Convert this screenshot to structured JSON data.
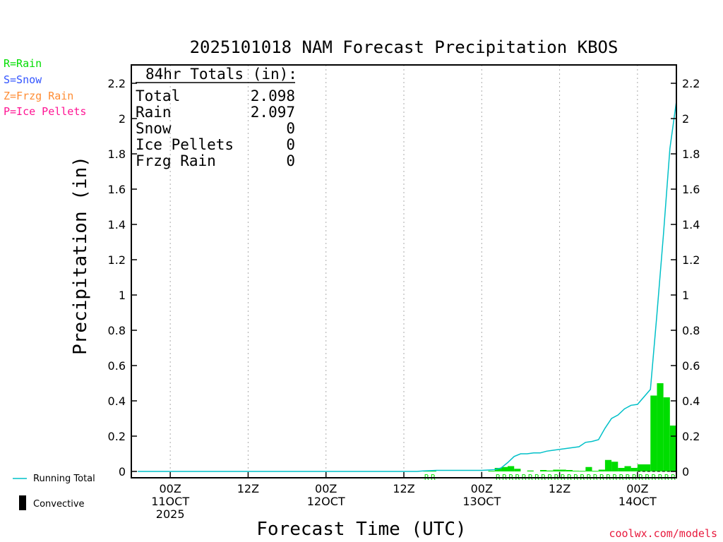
{
  "chart_data": {
    "type": "bar",
    "title": "2025101018 NAM Forecast Precipitation KBOS",
    "xlabel": "Forecast Time (UTC)",
    "ylabel": "Precipitation (in)",
    "ylim": [
      0,
      2.3
    ],
    "xlim_hours": [
      -6,
      78
    ],
    "yticks": [
      0,
      0.2,
      0.4,
      0.6,
      0.8,
      1,
      1.2,
      1.4,
      1.6,
      1.8,
      2,
      2.2
    ],
    "ytick_labels": [
      "0",
      "0.2",
      "0.4",
      "0.6",
      "0.8",
      "1",
      "1.2",
      "1.4",
      "1.6",
      "1.8",
      "2",
      "2.2"
    ],
    "xticks": [
      {
        "hour": 0,
        "lines": [
          "00Z",
          "11OCT",
          "2025"
        ]
      },
      {
        "hour": 12,
        "lines": [
          "12Z"
        ]
      },
      {
        "hour": 24,
        "lines": [
          "00Z",
          "12OCT"
        ]
      },
      {
        "hour": 36,
        "lines": [
          "12Z"
        ]
      },
      {
        "hour": 48,
        "lines": [
          "00Z",
          "13OCT"
        ]
      },
      {
        "hour": 60,
        "lines": [
          "12Z"
        ]
      },
      {
        "hour": 72,
        "lines": [
          "00Z",
          "14OCT"
        ]
      }
    ],
    "grid": "vertical-dotted",
    "legend": {
      "rain": "R=Rain",
      "snow": "S=Snow",
      "frzg_rain": "Z=Frzg Rain",
      "ice_pellets": "P=Ice Pellets",
      "running_total": "Running Total",
      "convective": "Convective"
    },
    "totals": {
      "header": "84hr Totals (in):",
      "rows": [
        {
          "label": "Total",
          "value": "2.098"
        },
        {
          "label": "Rain",
          "value": "2.097"
        },
        {
          "label": "Snow",
          "value": "0"
        },
        {
          "label": "Ice Pellets",
          "value": "0"
        },
        {
          "label": "Frzg Rain",
          "value": "0"
        }
      ]
    },
    "bars": [
      {
        "start": 39,
        "end": 40,
        "value": 0.003
      },
      {
        "start": 40,
        "end": 41,
        "value": 0.003
      },
      {
        "start": 49,
        "end": 50,
        "value": 0.003
      },
      {
        "start": 50,
        "end": 51,
        "value": 0.02
      },
      {
        "start": 51,
        "end": 52,
        "value": 0.025
      },
      {
        "start": 52,
        "end": 53,
        "value": 0.03
      },
      {
        "start": 53,
        "end": 54,
        "value": 0.015
      },
      {
        "start": 55,
        "end": 56,
        "value": 0.005
      },
      {
        "start": 57,
        "end": 58,
        "value": 0.008
      },
      {
        "start": 58,
        "end": 59,
        "value": 0.005
      },
      {
        "start": 59,
        "end": 60,
        "value": 0.01
      },
      {
        "start": 60,
        "end": 61,
        "value": 0.01
      },
      {
        "start": 61,
        "end": 62,
        "value": 0.008
      },
      {
        "start": 62,
        "end": 63,
        "value": 0.004
      },
      {
        "start": 63,
        "end": 64,
        "value": 0.003
      },
      {
        "start": 64,
        "end": 65,
        "value": 0.025
      },
      {
        "start": 65,
        "end": 66,
        "value": 0.003
      },
      {
        "start": 66,
        "end": 67,
        "value": 0.01
      },
      {
        "start": 67,
        "end": 68,
        "value": 0.065
      },
      {
        "start": 68,
        "end": 69,
        "value": 0.055
      },
      {
        "start": 69,
        "end": 70,
        "value": 0.02
      },
      {
        "start": 70,
        "end": 71,
        "value": 0.03
      },
      {
        "start": 71,
        "end": 72,
        "value": 0.02
      },
      {
        "start": 72,
        "end": 74,
        "value": 0.04
      },
      {
        "start": 74,
        "end": 75,
        "value": 0.43
      },
      {
        "start": 75,
        "end": 76,
        "value": 0.5
      },
      {
        "start": 76,
        "end": 77,
        "value": 0.42
      },
      {
        "start": 77,
        "end": 78,
        "value": 0.26
      }
    ],
    "running_total": {
      "x": [
        -5,
        38,
        39,
        41,
        48,
        50,
        51,
        52,
        53,
        54,
        55,
        56,
        57,
        58,
        59,
        60,
        61,
        62,
        63,
        64,
        65,
        66,
        67,
        68,
        69,
        70,
        71,
        72,
        74,
        75,
        76,
        77,
        78
      ],
      "y": [
        0,
        0,
        0.003,
        0.006,
        0.006,
        0.01,
        0.02,
        0.05,
        0.085,
        0.1,
        0.1,
        0.105,
        0.105,
        0.115,
        0.12,
        0.125,
        0.13,
        0.135,
        0.14,
        0.165,
        0.17,
        0.18,
        0.245,
        0.3,
        0.32,
        0.355,
        0.375,
        0.38,
        0.465,
        0.89,
        1.34,
        1.83,
        2.098
      ]
    },
    "precip_type_codes": [
      {
        "hour": 39,
        "code": "R"
      },
      {
        "hour": 40,
        "code": "R"
      },
      {
        "hour": 50,
        "code": "R"
      },
      {
        "hour": 51,
        "code": "R"
      },
      {
        "hour": 52,
        "code": "R"
      },
      {
        "hour": 53,
        "code": "R"
      },
      {
        "hour": 54,
        "code": "R"
      },
      {
        "hour": 55,
        "code": "R"
      },
      {
        "hour": 56,
        "code": "R"
      },
      {
        "hour": 57,
        "code": "R"
      },
      {
        "hour": 58,
        "code": "R"
      },
      {
        "hour": 59,
        "code": "R"
      },
      {
        "hour": 60,
        "code": "R"
      },
      {
        "hour": 61,
        "code": "R"
      },
      {
        "hour": 62,
        "code": "R"
      },
      {
        "hour": 63,
        "code": "R"
      },
      {
        "hour": 64,
        "code": "R"
      },
      {
        "hour": 65,
        "code": "R"
      },
      {
        "hour": 66,
        "code": "R"
      },
      {
        "hour": 67,
        "code": "R"
      },
      {
        "hour": 68,
        "code": "R"
      },
      {
        "hour": 69,
        "code": "R"
      },
      {
        "hour": 70,
        "code": "R"
      },
      {
        "hour": 71,
        "code": "R"
      },
      {
        "hour": 72,
        "code": "R"
      },
      {
        "hour": 73,
        "code": "R"
      },
      {
        "hour": 74,
        "code": "R"
      },
      {
        "hour": 75,
        "code": "R"
      },
      {
        "hour": 76,
        "code": "R"
      },
      {
        "hour": 77,
        "code": "R"
      }
    ],
    "colors": {
      "rain": "#00dd00",
      "snow": "#3355ff",
      "frzg_rain": "#ff8c33",
      "ice_pellets": "#ff1493",
      "running_total": "#00c0c8",
      "convective": "#000000"
    },
    "credit": "coolwx.com/models"
  }
}
